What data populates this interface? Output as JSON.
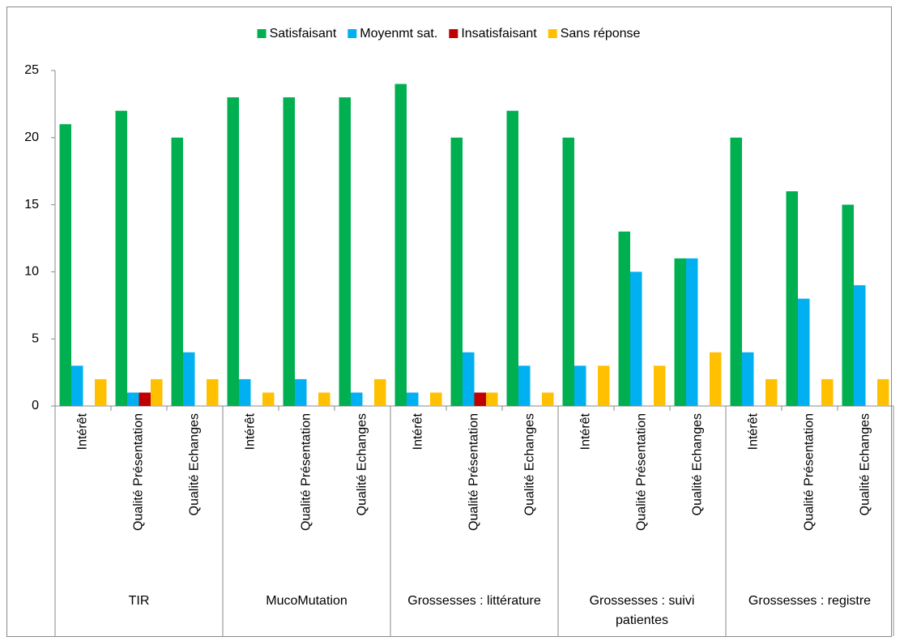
{
  "chart_data": {
    "type": "bar",
    "categories": [
      "Intérêt",
      "Qualité Présentation",
      "Qualité Echanges",
      "Intérêt",
      "Qualité Présentation",
      "Qualité Echanges",
      "Intérêt",
      "Qualité Présentation",
      "Qualité Echanges",
      "Intérêt",
      "Qualité Présentation",
      "Qualité Echanges",
      "Intérêt",
      "Qualité Présentation",
      "Qualité Echanges"
    ],
    "groups": [
      "TIR",
      "MucoMutation",
      "Grossesses : littérature",
      "Grossesses : suivi patientes",
      "Grossesses : registre"
    ],
    "series": [
      {
        "name": "Satisfaisant",
        "color": "#00b050",
        "values": [
          21,
          22,
          20,
          23,
          23,
          23,
          24,
          20,
          22,
          20,
          13,
          11,
          20,
          16,
          15
        ]
      },
      {
        "name": "Moyenmt sat.",
        "color": "#00b0f0",
        "values": [
          3,
          1,
          4,
          2,
          2,
          1,
          1,
          4,
          3,
          3,
          10,
          11,
          4,
          8,
          9
        ]
      },
      {
        "name": "Insatisfaisant",
        "color": "#c00000",
        "values": [
          0,
          1,
          0,
          0,
          0,
          0,
          0,
          1,
          0,
          0,
          0,
          0,
          0,
          0,
          0
        ]
      },
      {
        "name": "Sans réponse",
        "color": "#ffc000",
        "values": [
          2,
          2,
          2,
          1,
          1,
          2,
          1,
          1,
          1,
          3,
          3,
          4,
          2,
          2,
          2
        ]
      }
    ],
    "ylim": [
      0,
      25
    ],
    "yticks": [
      0,
      5,
      10,
      15,
      20,
      25
    ],
    "grid": false,
    "legend": "top"
  }
}
